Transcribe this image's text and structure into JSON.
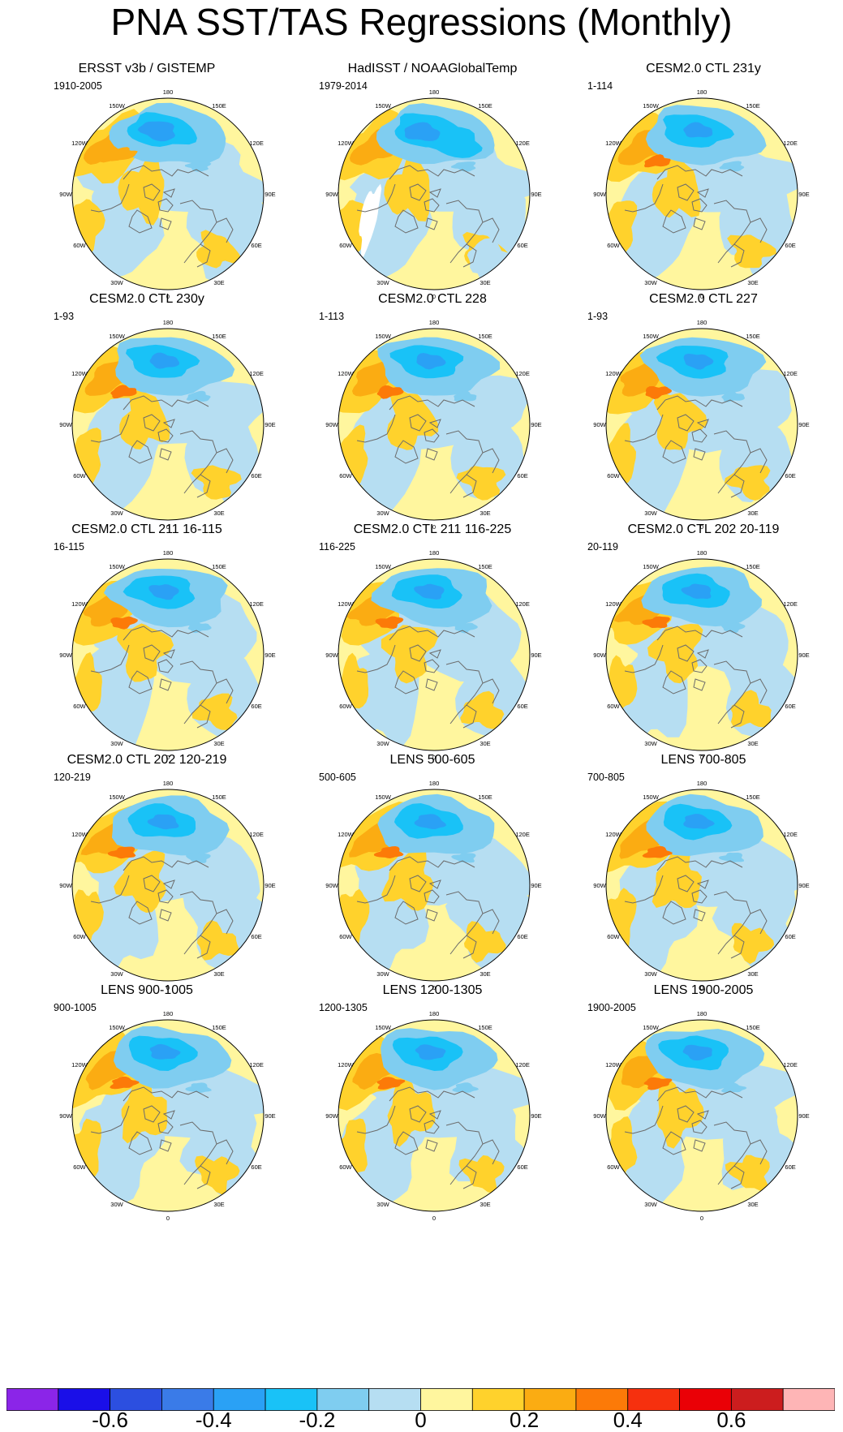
{
  "title": "PNA SST/TAS Regressions (Monthly)",
  "lon_labels": [
    "180",
    "150E",
    "120E",
    "90E",
    "60E",
    "30E",
    "0",
    "30W",
    "60W",
    "90W",
    "120W",
    "150W"
  ],
  "panels": [
    {
      "title": "ERSST v3b / GISTEMP",
      "period": "1910-2005",
      "variant": "obs1"
    },
    {
      "title": "HadISST / NOAAGlobalTemp",
      "period": "1979-2014",
      "variant": "obs2"
    },
    {
      "title": "CESM2.0 CTL 231y",
      "period": "1-114",
      "variant": "model"
    },
    {
      "title": "CESM2.0 CTL 230y",
      "period": "1-93",
      "variant": "model"
    },
    {
      "title": "CESM2.0 CTL 228",
      "period": "1-113",
      "variant": "model"
    },
    {
      "title": "CESM2.0 CTL 227",
      "period": "1-93",
      "variant": "model"
    },
    {
      "title": "CESM2.0 CTL 211 16-115",
      "period": "16-115",
      "variant": "model"
    },
    {
      "title": "CESM2.0 CTL 211 116-225",
      "period": "116-225",
      "variant": "model"
    },
    {
      "title": "CESM2.0 CTL 202 20-119",
      "period": "20-119",
      "variant": "model"
    },
    {
      "title": "CESM2.0 CTL 202 120-219",
      "period": "120-219",
      "variant": "model"
    },
    {
      "title": "LENS 500-605",
      "period": "500-605",
      "variant": "model"
    },
    {
      "title": "LENS 700-805",
      "period": "700-805",
      "variant": "model"
    },
    {
      "title": "LENS 900-1005",
      "period": "900-1005",
      "variant": "model"
    },
    {
      "title": "LENS 1200-1305",
      "period": "1200-1305",
      "variant": "model"
    },
    {
      "title": "LENS 1900-2005",
      "period": "1900-2005",
      "variant": "model"
    }
  ],
  "chart_data": {
    "type": "heatmap",
    "title": "PNA SST/TAS Regressions (Monthly)",
    "projection": "polar stereographic, Northern Hemisphere",
    "colorbar": {
      "boundaries": [
        -0.7,
        -0.6,
        -0.5,
        -0.4,
        -0.3,
        -0.2,
        -0.1,
        0,
        0.1,
        0.2,
        0.3,
        0.4,
        0.5,
        0.6,
        0.7
      ],
      "colors": [
        "#8b25e8",
        "#1a0fe8",
        "#2c4fe0",
        "#3a7be8",
        "#2aa1f5",
        "#19c2f7",
        "#7fcdf0",
        "#b6def2",
        "#fff69e",
        "#ffd22c",
        "#fbac12",
        "#fc7a08",
        "#f6300e",
        "#ea0006",
        "#cc1d1e",
        "#feb5b6"
      ],
      "tick_labels": [
        "-0.6",
        "-0.4",
        "-0.2",
        "0",
        "0.2",
        "0.4",
        "0.6"
      ],
      "tick_values": [
        -0.6,
        -0.4,
        -0.2,
        0,
        0.2,
        0.4,
        0.6
      ]
    },
    "features": {
      "north_pacific_negative_max": -0.4,
      "northwest_north_america_positive_max": 0.3,
      "background_range": [
        -0.1,
        0.1
      ]
    }
  }
}
